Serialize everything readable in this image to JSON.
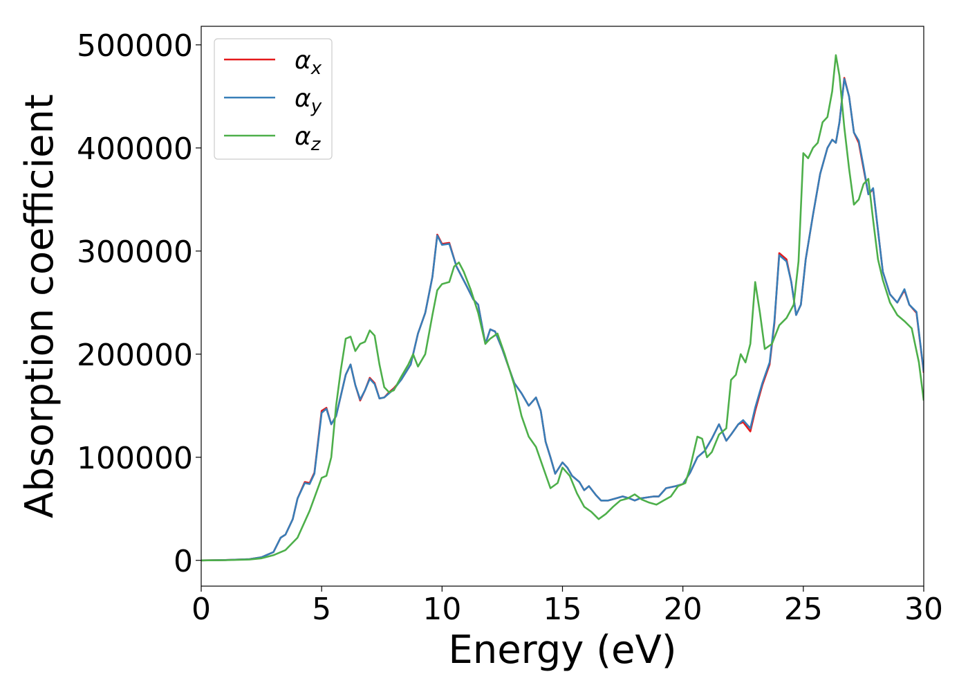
{
  "chart_data": {
    "type": "line",
    "title": "",
    "xlabel": "Energy (eV)",
    "ylabel": "Absorption coefficient",
    "xlim": [
      0,
      30
    ],
    "ylim": [
      -25000,
      518000
    ],
    "xticks": [
      0,
      5,
      10,
      15,
      20,
      25,
      30
    ],
    "yticks": [
      0,
      100000,
      200000,
      300000,
      400000,
      500000
    ],
    "xtick_labels": [
      "0",
      "5",
      "10",
      "15",
      "20",
      "25",
      "30"
    ],
    "ytick_labels": [
      "0",
      "100000",
      "200000",
      "300000",
      "400000",
      "500000"
    ],
    "grid": false,
    "legend_position": "top-left",
    "series": [
      {
        "name": "α_x",
        "legend_base": "α",
        "legend_sub": "x",
        "color": "#e41a1c",
        "x": [
          0,
          1,
          2,
          2.5,
          3,
          3.3,
          3.5,
          3.8,
          4.0,
          4.3,
          4.5,
          4.7,
          5.0,
          5.2,
          5.4,
          5.6,
          6.0,
          6.2,
          6.4,
          6.6,
          6.8,
          7.0,
          7.2,
          7.4,
          7.6,
          7.8,
          8.0,
          8.3,
          8.7,
          9.0,
          9.3,
          9.6,
          9.8,
          10.0,
          10.3,
          10.6,
          11.0,
          11.3,
          11.5,
          11.8,
          12.0,
          12.2,
          12.5,
          12.8,
          13.0,
          13.3,
          13.6,
          13.9,
          14.1,
          14.3,
          14.5,
          14.7,
          15.0,
          15.2,
          15.4,
          15.7,
          15.9,
          16.1,
          16.4,
          16.6,
          16.9,
          17.2,
          17.5,
          17.8,
          18.0,
          18.2,
          18.5,
          18.8,
          19.0,
          19.3,
          19.7,
          20.0,
          20.3,
          20.6,
          20.9,
          21.2,
          21.5,
          21.8,
          22.0,
          22.3,
          22.5,
          22.8,
          23.0,
          23.3,
          23.6,
          23.8,
          24.0,
          24.3,
          24.5,
          24.7,
          24.9,
          25.1,
          25.4,
          25.7,
          26.0,
          26.2,
          26.35,
          26.5,
          26.7,
          26.9,
          27.1,
          27.3,
          27.5,
          27.7,
          27.9,
          28.1,
          28.3,
          28.6,
          28.9,
          29.2,
          29.4,
          29.7,
          30.0
        ],
        "y": [
          0,
          300,
          1200,
          3000,
          8000,
          22000,
          25000,
          40000,
          60000,
          76000,
          75000,
          85000,
          145000,
          148000,
          132000,
          140000,
          180000,
          190000,
          170000,
          155000,
          165000,
          177000,
          172000,
          157000,
          158000,
          163000,
          167000,
          175000,
          190000,
          220000,
          240000,
          275000,
          316000,
          307000,
          308000,
          285000,
          267000,
          253000,
          248000,
          210000,
          224000,
          222000,
          205000,
          185000,
          172000,
          162000,
          150000,
          158000,
          145000,
          115000,
          100000,
          84000,
          95000,
          90000,
          82000,
          76000,
          68000,
          72000,
          63000,
          58000,
          58000,
          60000,
          62000,
          60000,
          58000,
          60000,
          61000,
          62000,
          62000,
          70000,
          72000,
          74000,
          85000,
          100000,
          106000,
          118000,
          132000,
          116000,
          122000,
          132000,
          134000,
          125000,
          145000,
          170000,
          190000,
          230000,
          298000,
          292000,
          270000,
          238000,
          248000,
          292000,
          335000,
          375000,
          400000,
          408000,
          405000,
          425000,
          468000,
          450000,
          415000,
          405000,
          380000,
          355000,
          360000,
          320000,
          280000,
          258000,
          250000,
          262000,
          248000,
          240000,
          182000
        ]
      },
      {
        "name": "α_y",
        "legend_base": "α",
        "legend_sub": "y",
        "color": "#377eb8",
        "x": [
          0,
          1,
          2,
          2.5,
          3,
          3.3,
          3.5,
          3.8,
          4.0,
          4.3,
          4.5,
          4.7,
          5.0,
          5.2,
          5.4,
          5.6,
          6.0,
          6.2,
          6.4,
          6.6,
          6.8,
          7.0,
          7.2,
          7.4,
          7.6,
          7.8,
          8.0,
          8.3,
          8.7,
          9.0,
          9.3,
          9.6,
          9.8,
          10.0,
          10.3,
          10.6,
          11.0,
          11.3,
          11.5,
          11.8,
          12.0,
          12.2,
          12.5,
          12.8,
          13.0,
          13.3,
          13.6,
          13.9,
          14.1,
          14.3,
          14.5,
          14.7,
          15.0,
          15.2,
          15.4,
          15.7,
          15.9,
          16.1,
          16.4,
          16.6,
          16.9,
          17.2,
          17.5,
          17.8,
          18.0,
          18.2,
          18.5,
          18.8,
          19.0,
          19.3,
          19.7,
          20.0,
          20.3,
          20.6,
          20.9,
          21.2,
          21.5,
          21.8,
          22.0,
          22.3,
          22.5,
          22.8,
          23.0,
          23.3,
          23.6,
          23.8,
          24.0,
          24.3,
          24.5,
          24.7,
          24.9,
          25.1,
          25.4,
          25.7,
          26.0,
          26.2,
          26.35,
          26.5,
          26.7,
          26.9,
          27.1,
          27.3,
          27.5,
          27.7,
          27.9,
          28.1,
          28.3,
          28.6,
          28.9,
          29.2,
          29.4,
          29.7,
          30.0
        ],
        "y": [
          0,
          300,
          1200,
          3000,
          8000,
          22000,
          25000,
          40000,
          60000,
          75000,
          74000,
          84000,
          143000,
          147000,
          132000,
          140000,
          180000,
          190000,
          170000,
          156000,
          165000,
          176000,
          171000,
          157000,
          158000,
          162000,
          166000,
          175000,
          190000,
          220000,
          240000,
          275000,
          315000,
          306000,
          307000,
          285000,
          267000,
          253000,
          248000,
          210000,
          224000,
          222000,
          205000,
          185000,
          172000,
          162000,
          150000,
          158000,
          145000,
          115000,
          100000,
          84000,
          95000,
          90000,
          82000,
          76000,
          68000,
          72000,
          63000,
          58000,
          58000,
          60000,
          62000,
          60000,
          58000,
          60000,
          61000,
          62000,
          62000,
          70000,
          72000,
          74000,
          85000,
          100000,
          106000,
          118000,
          132000,
          116000,
          122000,
          132000,
          136000,
          128000,
          148000,
          172000,
          192000,
          232000,
          296000,
          290000,
          270000,
          238000,
          248000,
          292000,
          335000,
          375000,
          400000,
          408000,
          405000,
          425000,
          467000,
          450000,
          415000,
          407000,
          382000,
          355000,
          361000,
          320000,
          280000,
          258000,
          250000,
          263000,
          248000,
          241000,
          183000
        ]
      },
      {
        "name": "α_z",
        "legend_base": "α",
        "legend_sub": "z",
        "color": "#4daf4a",
        "x": [
          0,
          1,
          2,
          2.5,
          3,
          3.5,
          4.0,
          4.5,
          5.0,
          5.2,
          5.4,
          5.6,
          5.8,
          6.0,
          6.2,
          6.4,
          6.6,
          6.8,
          7.0,
          7.2,
          7.4,
          7.6,
          7.8,
          8.0,
          8.3,
          8.6,
          8.8,
          9.0,
          9.3,
          9.6,
          9.8,
          10.0,
          10.3,
          10.5,
          10.7,
          10.9,
          11.2,
          11.5,
          11.8,
          12.0,
          12.3,
          12.6,
          13.0,
          13.3,
          13.6,
          13.9,
          14.2,
          14.5,
          14.8,
          15.0,
          15.3,
          15.6,
          15.9,
          16.2,
          16.5,
          16.8,
          17.1,
          17.4,
          17.7,
          18.0,
          18.3,
          18.6,
          18.9,
          19.2,
          19.5,
          19.8,
          20.1,
          20.3,
          20.6,
          20.8,
          21.0,
          21.2,
          21.5,
          21.8,
          22.0,
          22.2,
          22.4,
          22.6,
          22.8,
          23.0,
          23.2,
          23.4,
          23.7,
          24.0,
          24.3,
          24.6,
          24.8,
          25.0,
          25.2,
          25.4,
          25.6,
          25.8,
          26.0,
          26.2,
          26.35,
          26.5,
          26.7,
          26.9,
          27.1,
          27.3,
          27.5,
          27.7,
          27.9,
          28.1,
          28.3,
          28.6,
          28.9,
          29.2,
          29.5,
          29.8,
          30.0
        ],
        "y": [
          0,
          200,
          800,
          2000,
          5000,
          10000,
          22000,
          48000,
          80000,
          82000,
          100000,
          150000,
          185000,
          215000,
          217000,
          203000,
          210000,
          212000,
          223000,
          218000,
          190000,
          168000,
          163000,
          165000,
          178000,
          190000,
          200000,
          188000,
          200000,
          238000,
          262000,
          268000,
          270000,
          285000,
          289000,
          280000,
          262000,
          240000,
          210000,
          215000,
          220000,
          200000,
          170000,
          140000,
          120000,
          110000,
          90000,
          70000,
          75000,
          90000,
          82000,
          65000,
          52000,
          47000,
          40000,
          45000,
          52000,
          58000,
          60000,
          64000,
          59000,
          56000,
          54000,
          58000,
          62000,
          72000,
          75000,
          90000,
          120000,
          118000,
          100000,
          105000,
          122000,
          128000,
          175000,
          180000,
          200000,
          192000,
          210000,
          270000,
          240000,
          205000,
          210000,
          228000,
          235000,
          248000,
          290000,
          395000,
          390000,
          400000,
          405000,
          425000,
          430000,
          455000,
          490000,
          470000,
          420000,
          380000,
          345000,
          350000,
          365000,
          370000,
          330000,
          292000,
          272000,
          250000,
          238000,
          232000,
          225000,
          192000,
          155000
        ]
      }
    ]
  }
}
